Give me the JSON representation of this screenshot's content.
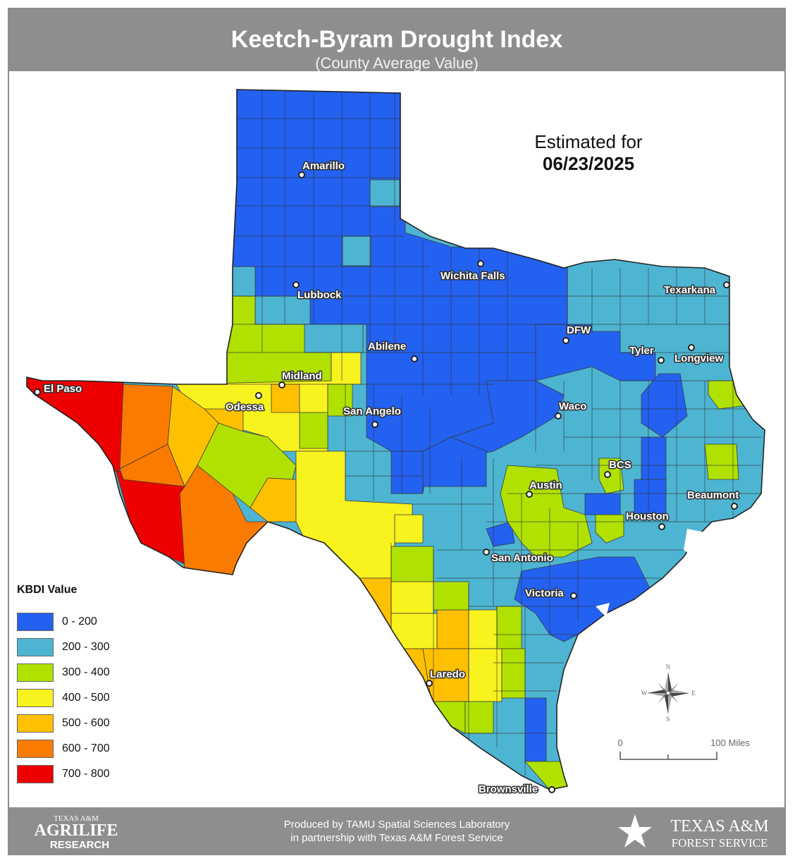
{
  "header": {
    "title": "Keetch-Byram Drought Index",
    "subtitle": "(County Average Value)"
  },
  "estimate": {
    "label": "Estimated for",
    "date": "06/23/2025"
  },
  "legend": {
    "title": "KBDI Value",
    "classes": [
      {
        "label": "0 - 200",
        "color": "#2361f1"
      },
      {
        "label": "200 - 300",
        "color": "#4db5d2"
      },
      {
        "label": "300 - 400",
        "color": "#b0e100"
      },
      {
        "label": "400 - 500",
        "color": "#f8f21e"
      },
      {
        "label": "500 - 600",
        "color": "#ffc000"
      },
      {
        "label": "600 - 700",
        "color": "#fb7b00"
      },
      {
        "label": "700 - 800",
        "color": "#ee0000"
      }
    ]
  },
  "cities": [
    {
      "name": "Amarillo",
      "class": "0 - 200"
    },
    {
      "name": "Lubbock",
      "class": "0 - 200"
    },
    {
      "name": "Wichita Falls",
      "class": "0 - 200"
    },
    {
      "name": "Texarkana",
      "class": "200 - 300"
    },
    {
      "name": "DFW",
      "class": "200 - 300"
    },
    {
      "name": "Tyler",
      "class": "0 - 200"
    },
    {
      "name": "Longview",
      "class": "200 - 300"
    },
    {
      "name": "Abilene",
      "class": "0 - 200"
    },
    {
      "name": "Midland",
      "class": "500 - 600"
    },
    {
      "name": "Odessa",
      "class": "400 - 500"
    },
    {
      "name": "El Paso",
      "class": "700 - 800"
    },
    {
      "name": "San Angelo",
      "class": "200 - 300"
    },
    {
      "name": "Waco",
      "class": "200 - 300"
    },
    {
      "name": "BCS",
      "class": "300 - 400"
    },
    {
      "name": "Austin",
      "class": "300 - 400"
    },
    {
      "name": "Beaumont",
      "class": "200 - 300"
    },
    {
      "name": "Houston",
      "class": "200 - 300"
    },
    {
      "name": "San Antonio",
      "class": "200 - 300"
    },
    {
      "name": "Victoria",
      "class": "0 - 200"
    },
    {
      "name": "Laredo",
      "class": "500 - 600"
    },
    {
      "name": "Brownsville",
      "class": "300 - 400"
    }
  ],
  "compass": {
    "n": "N",
    "e": "E",
    "s": "S",
    "w": "W"
  },
  "scale_bar": {
    "start": "0",
    "end": "100 Miles"
  },
  "footer": {
    "credit_line1": "Produced by TAMU Spatial Sciences Laboratory",
    "credit_line2": "in partnership with Texas A&M Forest Service",
    "agrilife_top": "TEXAS A&M",
    "agrilife_mid": "AGRILIFE",
    "agrilife_bottom": "RESEARCH",
    "tamfs_top": "TEXAS A&M",
    "tamfs_bottom": "FOREST SERVICE"
  }
}
